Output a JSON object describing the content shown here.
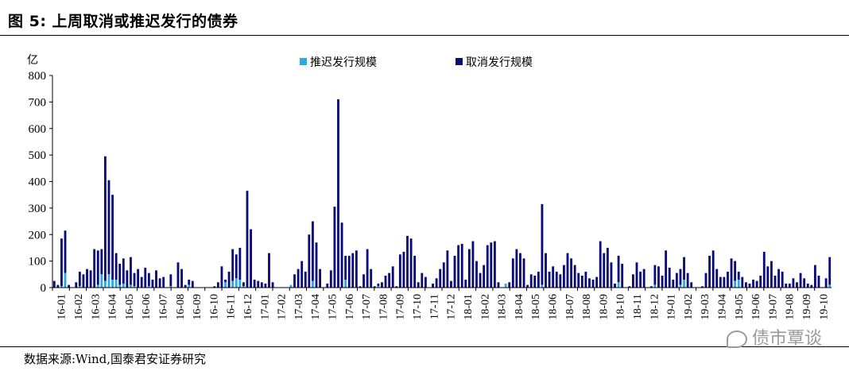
{
  "figure": {
    "title": "图 5:  上周取消或推迟发行的债券",
    "source": "数据来源:Wind,国泰君安证券研究",
    "watermark": "债市覃谈"
  },
  "colors": {
    "postpone": "#2aaae2",
    "cancel": "#0a0a78",
    "axis": "#000000"
  },
  "chart_data": {
    "type": "bar",
    "stacked": true,
    "unit_label": "亿",
    "ylim": [
      0,
      800
    ],
    "yticks": [
      0,
      100,
      200,
      300,
      400,
      500,
      600,
      700,
      800
    ],
    "legend": {
      "placement": "top-center",
      "entries": [
        "推迟发行规模",
        "取消发行规模"
      ]
    },
    "grid": false,
    "x_tick_labels": [
      "16-01",
      "16-02",
      "16-03",
      "16-04",
      "16-05",
      "16-06",
      "16-07",
      "16-08",
      "16-09",
      "16-10",
      "16-11",
      "16-12",
      "17-01",
      "17-02",
      "17-03",
      "17-04",
      "17-05",
      "17-06",
      "17-07",
      "17-08",
      "17-09",
      "17-10",
      "17-11",
      "17-12",
      "18-01",
      "18-02",
      "18-03",
      "18-04",
      "18-05",
      "18-06",
      "18-07",
      "18-08",
      "18-09",
      "18-10",
      "18-11",
      "18-12",
      "19-01",
      "19-02",
      "19-03",
      "19-04",
      "19-05",
      "19-06",
      "19-07",
      "19-08",
      "19-09",
      "19-10"
    ],
    "series": [
      {
        "name": "推迟发行规模",
        "values": [
          0,
          0,
          5,
          55,
          0,
          0,
          0,
          5,
          0,
          0,
          0,
          0,
          10,
          50,
          25,
          50,
          30,
          30,
          10,
          15,
          0,
          10,
          5,
          0,
          0,
          0,
          5,
          0,
          0,
          0,
          0,
          0,
          5,
          0,
          0,
          0,
          0,
          10,
          0,
          0,
          0,
          0,
          0,
          0,
          0,
          0,
          0,
          20,
          0,
          25,
          35,
          30,
          5,
          0,
          0,
          0,
          0,
          0,
          0,
          0,
          0,
          0,
          0,
          0,
          0,
          10,
          0,
          0,
          0,
          0,
          0,
          25,
          0,
          0,
          0,
          0,
          0,
          0,
          0,
          0,
          30,
          0,
          0,
          0,
          0,
          0,
          0,
          0,
          0,
          5,
          0,
          0,
          0,
          0,
          0,
          0,
          0,
          0,
          0,
          0,
          0,
          0,
          0,
          0,
          0,
          0,
          0,
          0,
          0,
          0,
          0,
          0,
          0,
          0,
          0,
          0,
          0,
          0,
          0,
          0,
          0,
          0,
          0,
          0,
          15,
          0,
          0,
          0,
          0,
          0,
          0,
          0,
          0,
          0,
          10,
          0,
          0,
          0,
          0,
          0,
          0,
          0,
          0,
          0,
          0,
          0,
          0,
          0,
          0,
          0,
          0,
          0,
          0,
          0,
          0,
          20,
          0,
          0,
          0,
          0,
          0,
          0,
          0,
          0,
          0,
          10,
          0,
          0,
          0,
          0,
          0,
          0,
          10,
          30,
          0,
          0,
          0,
          0,
          0,
          0,
          0,
          0,
          0,
          0,
          0,
          0,
          0,
          25,
          30,
          0,
          0,
          0,
          0,
          0,
          0,
          0,
          0,
          0,
          0,
          0,
          0,
          0,
          0,
          0,
          0,
          0,
          0,
          0,
          0,
          0,
          0,
          0,
          0,
          10,
          20,
          0,
          0,
          0,
          0,
          0,
          0,
          0,
          0,
          0,
          0,
          0,
          0,
          0,
          0,
          0,
          0
        ]
      },
      {
        "name": "取消发行规模",
        "values": [
          25,
          10,
          180,
          160,
          10,
          0,
          20,
          55,
          50,
          70,
          65,
          145,
          130,
          95,
          470,
          355,
          320,
          100,
          80,
          95,
          65,
          105,
          50,
          70,
          40,
          75,
          50,
          30,
          65,
          35,
          40,
          0,
          45,
          0,
          95,
          70,
          10,
          20,
          25,
          0,
          0,
          0,
          0,
          0,
          5,
          20,
          80,
          10,
          60,
          120,
          90,
          120,
          15,
          365,
          220,
          30,
          25,
          20,
          15,
          130,
          20,
          0,
          0,
          0,
          0,
          0,
          50,
          70,
          100,
          60,
          200,
          225,
          170,
          70,
          0,
          15,
          65,
          305,
          710,
          245,
          90,
          120,
          130,
          140,
          5,
          50,
          145,
          70,
          5,
          10,
          20,
          45,
          55,
          80,
          5,
          125,
          135,
          195,
          185,
          120,
          20,
          55,
          40,
          0,
          15,
          35,
          70,
          95,
          140,
          25,
          120,
          160,
          165,
          30,
          145,
          175,
          100,
          55,
          85,
          160,
          170,
          175,
          20,
          0,
          0,
          20,
          110,
          145,
          130,
          110,
          10,
          50,
          45,
          60,
          305,
          130,
          60,
          80,
          60,
          50,
          85,
          130,
          110,
          85,
          55,
          45,
          60,
          35,
          30,
          40,
          175,
          130,
          150,
          95,
          15,
          100,
          90,
          0,
          5,
          50,
          95,
          60,
          70,
          0,
          5,
          75,
          80,
          45,
          140,
          75,
          30,
          55,
          60,
          85,
          55,
          20,
          0,
          0,
          5,
          55,
          120,
          140,
          70,
          40,
          40,
          60,
          110,
          75,
          30,
          40,
          20,
          15,
          30,
          25,
          45,
          135,
          80,
          100,
          45,
          70,
          60,
          15,
          15,
          35,
          20,
          55,
          35,
          15,
          10,
          85,
          45,
          0,
          35,
          105
        ]
      }
    ]
  }
}
